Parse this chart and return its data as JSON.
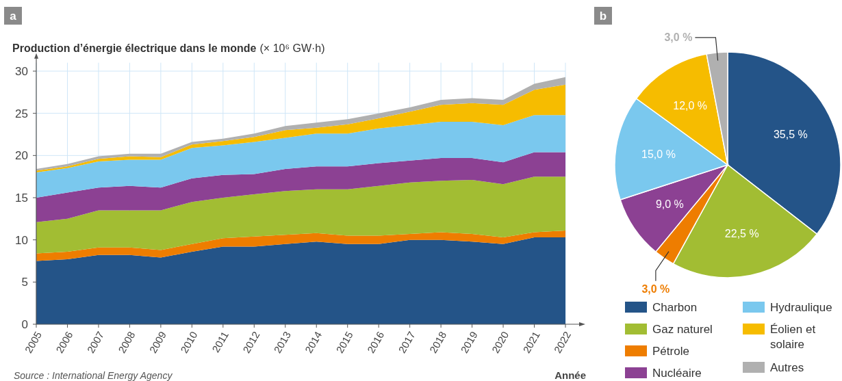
{
  "chart_data": [
    {
      "type": "area",
      "title": "Production d’énergie électrique dans le monde",
      "subtitle": "(× 10⁶ GW·h)",
      "xlabel": "Année",
      "annotations": [
        "a",
        "Source : International Energy Agency"
      ],
      "x": [
        2005,
        2006,
        2007,
        2008,
        2009,
        2010,
        2011,
        2012,
        2013,
        2014,
        2015,
        2016,
        2017,
        2018,
        2019,
        2020,
        2021,
        2022
      ],
      "stacked": true,
      "grid": true,
      "xlim": [
        2005,
        2022
      ],
      "xticks": [
        2005,
        2006,
        2007,
        2008,
        2009,
        2010,
        2011,
        2012,
        2013,
        2014,
        2015,
        2016,
        2017,
        2018,
        2019,
        2020,
        2021,
        2022
      ],
      "ylim": [
        0,
        31
      ],
      "yticks": [
        0,
        5,
        10,
        15,
        20,
        25,
        30
      ],
      "series": [
        {
          "color": "#245488",
          "values": [
            7.5,
            7.7,
            8.2,
            8.2,
            7.9,
            8.6,
            9.2,
            9.2,
            9.5,
            9.8,
            9.5,
            9.5,
            10.0,
            10.0,
            9.8,
            9.5,
            10.3,
            10.3
          ]
        },
        {
          "color": "#ee7d00",
          "values": [
            0.9,
            0.9,
            0.9,
            0.9,
            0.9,
            0.9,
            1.0,
            1.2,
            1.1,
            1.0,
            1.0,
            1.0,
            0.7,
            0.9,
            0.9,
            0.8,
            0.6,
            0.8
          ]
        },
        {
          "color": "#a2bd33",
          "values": [
            3.7,
            3.9,
            4.4,
            4.4,
            4.7,
            5.0,
            4.8,
            5.0,
            5.2,
            5.2,
            5.5,
            5.9,
            6.1,
            6.1,
            6.4,
            6.3,
            6.6,
            6.4
          ]
        },
        {
          "color": "#8c4193",
          "values": [
            2.9,
            3.1,
            2.7,
            2.9,
            2.7,
            2.8,
            2.7,
            2.4,
            2.6,
            2.7,
            2.7,
            2.7,
            2.6,
            2.7,
            2.6,
            2.6,
            2.9,
            2.9
          ]
        },
        {
          "color": "#7ac8ee",
          "values": [
            3.0,
            2.9,
            3.1,
            3.1,
            3.3,
            3.6,
            3.5,
            3.8,
            3.7,
            3.9,
            3.9,
            4.1,
            4.2,
            4.3,
            4.3,
            4.4,
            4.4,
            4.4
          ]
        },
        {
          "color": "#f6bc00",
          "values": [
            0.2,
            0.2,
            0.3,
            0.4,
            0.3,
            0.4,
            0.5,
            0.6,
            0.9,
            0.7,
            1.1,
            1.2,
            1.6,
            2.0,
            2.2,
            2.4,
            3.0,
            3.6
          ]
        },
        {
          "color": "#b0b0b0",
          "values": [
            0.2,
            0.3,
            0.3,
            0.3,
            0.4,
            0.3,
            0.3,
            0.4,
            0.5,
            0.6,
            0.6,
            0.6,
            0.5,
            0.6,
            0.6,
            0.6,
            0.7,
            0.9
          ]
        }
      ]
    },
    {
      "type": "pie",
      "annotations": [
        "b"
      ],
      "legend": "bottom",
      "categories": [
        "Charbon",
        "Gaz naturel",
        "Pétrole",
        "Nucléaire",
        "Hydraulique",
        "Éolien et solaire",
        "Autres"
      ],
      "values": [
        35.5,
        22.5,
        3.0,
        9.0,
        15.0,
        12.0,
        3.0
      ],
      "colors": [
        "#245488",
        "#a2bd33",
        "#ee7d00",
        "#8c4193",
        "#7ac8ee",
        "#f6bc00",
        "#b0b0b0"
      ],
      "value_labels": [
        "35,5 %",
        "22,5 %",
        "3,0 %",
        "9,0 %",
        "15,0 %",
        "12,0 %",
        "3,0 %"
      ]
    }
  ]
}
